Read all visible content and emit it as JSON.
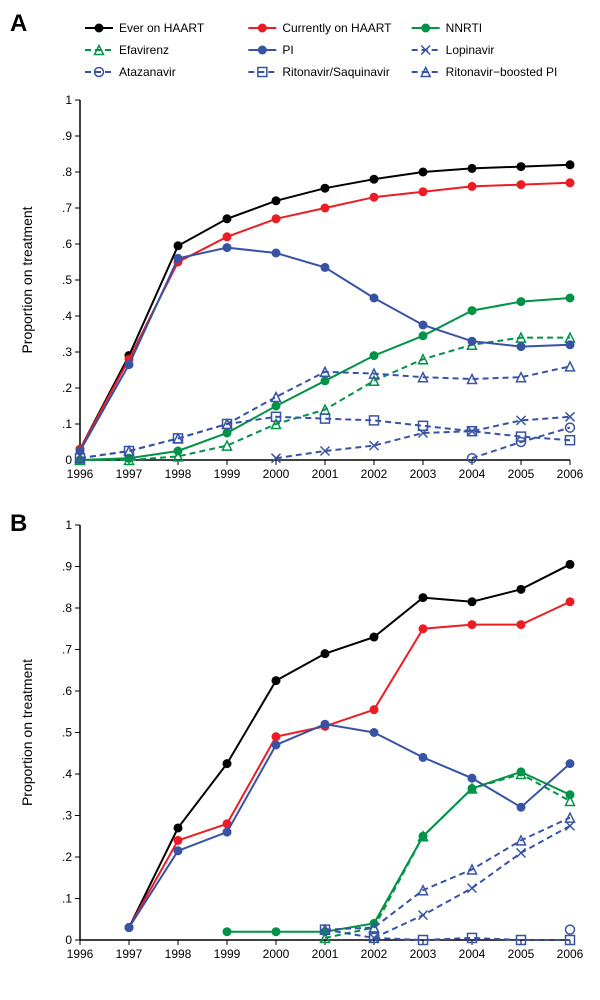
{
  "panelA": {
    "label": "A",
    "ylabel": "Proportion on treatment",
    "ylim": [
      0,
      1
    ],
    "yticks": [
      0,
      0.1,
      0.2,
      0.3,
      0.4,
      0.5,
      0.6,
      0.7,
      0.8,
      0.9,
      1
    ],
    "ytick_labels": [
      "0",
      ".1",
      ".2",
      ".3",
      ".4",
      ".5",
      ".6",
      ".7",
      ".8",
      ".9",
      "1"
    ],
    "xlim": [
      1996,
      2006
    ],
    "xticks": [
      1996,
      1997,
      1998,
      1999,
      2000,
      2001,
      2002,
      2003,
      2004,
      2005,
      2006
    ],
    "background_color": "#ffffff",
    "axis_color": "#000000",
    "label_fontsize": 14,
    "tick_fontsize": 12,
    "legend": {
      "items": [
        {
          "label": "Ever on HAART",
          "color": "#000000",
          "marker": "circle-filled",
          "dash": "solid"
        },
        {
          "label": "Currently on HAART",
          "color": "#ed1c24",
          "marker": "circle-filled",
          "dash": "solid"
        },
        {
          "label": "NNRTI",
          "color": "#009247",
          "marker": "circle-filled",
          "dash": "solid"
        },
        {
          "label": "Efavirenz",
          "color": "#009247",
          "marker": "triangle-open",
          "dash": "dashed"
        },
        {
          "label": "PI",
          "color": "#3953a4",
          "marker": "circle-filled",
          "dash": "solid"
        },
        {
          "label": "Lopinavir",
          "color": "#3953a4",
          "marker": "x",
          "dash": "dashed"
        },
        {
          "label": "Atazanavir",
          "color": "#3953a4",
          "marker": "circle-open",
          "dash": "dashed"
        },
        {
          "label": "Ritonavir/Saquinavir",
          "color": "#3953a4",
          "marker": "square-open",
          "dash": "dashed"
        },
        {
          "label": "Ritonavir−boosted PI",
          "color": "#3953a4",
          "marker": "triangle-open",
          "dash": "dashed"
        }
      ]
    },
    "series": {
      "ever_haart": {
        "color": "#000000",
        "marker": "circle-filled",
        "dash": "solid",
        "x": [
          1996,
          1997,
          1998,
          1999,
          2000,
          2001,
          2002,
          2003,
          2004,
          2005,
          2006
        ],
        "y": [
          0.03,
          0.29,
          0.595,
          0.67,
          0.72,
          0.755,
          0.78,
          0.8,
          0.81,
          0.815,
          0.82
        ]
      },
      "currently_haart": {
        "color": "#ed1c24",
        "marker": "circle-filled",
        "dash": "solid",
        "x": [
          1996,
          1997,
          1998,
          1999,
          2000,
          2001,
          2002,
          2003,
          2004,
          2005,
          2006
        ],
        "y": [
          0.03,
          0.28,
          0.55,
          0.62,
          0.67,
          0.7,
          0.73,
          0.745,
          0.76,
          0.765,
          0.77
        ]
      },
      "nnrti": {
        "color": "#009247",
        "marker": "circle-filled",
        "dash": "solid",
        "x": [
          1996,
          1997,
          1998,
          1999,
          2000,
          2001,
          2002,
          2003,
          2004,
          2005,
          2006
        ],
        "y": [
          0.0,
          0.005,
          0.025,
          0.075,
          0.15,
          0.22,
          0.29,
          0.345,
          0.415,
          0.44,
          0.45
        ]
      },
      "efavirenz": {
        "color": "#009247",
        "marker": "triangle-open",
        "dash": "dashed",
        "x": [
          1996,
          1997,
          1998,
          1999,
          2000,
          2001,
          2002,
          2003,
          2004,
          2005,
          2006
        ],
        "y": [
          0.0,
          0.0,
          0.01,
          0.04,
          0.1,
          0.14,
          0.22,
          0.28,
          0.32,
          0.34,
          0.34
        ]
      },
      "pi": {
        "color": "#3953a4",
        "marker": "circle-filled",
        "dash": "solid",
        "x": [
          1996,
          1997,
          1998,
          1999,
          2000,
          2001,
          2002,
          2003,
          2004,
          2005,
          2006
        ],
        "y": [
          0.025,
          0.265,
          0.56,
          0.59,
          0.575,
          0.535,
          0.45,
          0.375,
          0.33,
          0.315,
          0.32
        ]
      },
      "lopinavir": {
        "color": "#3953a4",
        "marker": "x",
        "dash": "dashed",
        "x": [
          2000,
          2001,
          2002,
          2003,
          2004,
          2005,
          2006
        ],
        "y": [
          0.005,
          0.025,
          0.04,
          0.075,
          0.08,
          0.11,
          0.12
        ]
      },
      "atazanavir": {
        "color": "#3953a4",
        "marker": "circle-open",
        "dash": "dashed",
        "x": [
          2004,
          2005,
          2006
        ],
        "y": [
          0.005,
          0.05,
          0.09
        ]
      },
      "ritonavir_saquinavir": {
        "color": "#3953a4",
        "marker": "square-open",
        "dash": "dashed",
        "x": [
          1996,
          1997,
          1998,
          1999,
          2000,
          2001,
          2002,
          2003,
          2004,
          2005,
          2006
        ],
        "y": [
          0.005,
          0.025,
          0.06,
          0.1,
          0.12,
          0.115,
          0.11,
          0.095,
          0.08,
          0.065,
          0.055
        ]
      },
      "ritonavir_boosted": {
        "color": "#3953a4",
        "marker": "triangle-open",
        "dash": "dashed",
        "x": [
          1996,
          1997,
          1998,
          1999,
          2000,
          2001,
          2002,
          2003,
          2004,
          2005,
          2006
        ],
        "y": [
          0.005,
          0.025,
          0.06,
          0.1,
          0.175,
          0.245,
          0.24,
          0.23,
          0.225,
          0.23,
          0.26
        ]
      }
    }
  },
  "panelB": {
    "label": "B",
    "ylabel": "Proportion on treatment",
    "ylim": [
      0,
      1
    ],
    "yticks": [
      0,
      0.1,
      0.2,
      0.3,
      0.4,
      0.5,
      0.6,
      0.7,
      0.8,
      0.9,
      1
    ],
    "ytick_labels": [
      "0",
      ".1",
      ".2",
      ".3",
      ".4",
      ".5",
      ".6",
      ".7",
      ".8",
      ".9",
      "1"
    ],
    "xlim": [
      1996,
      2006
    ],
    "xticks": [
      1996,
      1997,
      1998,
      1999,
      2000,
      2001,
      2002,
      2003,
      2004,
      2005,
      2006
    ],
    "background_color": "#ffffff",
    "axis_color": "#000000",
    "label_fontsize": 14,
    "tick_fontsize": 12,
    "series": {
      "ever_haart": {
        "color": "#000000",
        "marker": "circle-filled",
        "dash": "solid",
        "x": [
          1997,
          1998,
          1999,
          2000,
          2001,
          2002,
          2003,
          2004,
          2005,
          2006
        ],
        "y": [
          0.03,
          0.27,
          0.425,
          0.625,
          0.69,
          0.73,
          0.825,
          0.815,
          0.845,
          0.905
        ]
      },
      "currently_haart": {
        "color": "#ed1c24",
        "marker": "circle-filled",
        "dash": "solid",
        "x": [
          1997,
          1998,
          1999,
          2000,
          2001,
          2002,
          2003,
          2004,
          2005,
          2006
        ],
        "y": [
          0.03,
          0.24,
          0.28,
          0.49,
          0.515,
          0.555,
          0.75,
          0.76,
          0.76,
          0.815
        ]
      },
      "nnrti": {
        "color": "#009247",
        "marker": "circle-filled",
        "dash": "solid",
        "x": [
          1999,
          2000,
          2001,
          2002,
          2003,
          2004,
          2005,
          2006
        ],
        "y": [
          0.02,
          0.02,
          0.02,
          0.04,
          0.25,
          0.365,
          0.405,
          0.35
        ]
      },
      "efavirenz": {
        "color": "#009247",
        "marker": "triangle-open",
        "dash": "dashed",
        "x": [
          2001,
          2002,
          2003,
          2004,
          2005,
          2006
        ],
        "y": [
          0.005,
          0.03,
          0.25,
          0.365,
          0.4,
          0.335
        ]
      },
      "pi": {
        "color": "#3953a4",
        "marker": "circle-filled",
        "dash": "solid",
        "x": [
          1997,
          1998,
          1999,
          2000,
          2001,
          2002,
          2003,
          2004,
          2005,
          2006
        ],
        "y": [
          0.03,
          0.215,
          0.26,
          0.47,
          0.52,
          0.5,
          0.44,
          0.39,
          0.32,
          0.425
        ]
      },
      "lopinavir": {
        "color": "#3953a4",
        "marker": "x",
        "dash": "dashed",
        "x": [
          2002,
          2003,
          2004,
          2005,
          2006
        ],
        "y": [
          0.005,
          0.06,
          0.125,
          0.21,
          0.275
        ]
      },
      "atazanavir": {
        "color": "#3953a4",
        "marker": "circle-open",
        "dash": "dashed",
        "x": [
          2006
        ],
        "y": [
          0.025
        ]
      },
      "ritonavir_saquinavir": {
        "color": "#3953a4",
        "marker": "square-open",
        "dash": "dashed",
        "x": [
          2001,
          2002,
          2003,
          2004,
          2005,
          2006
        ],
        "y": [
          0.025,
          0.005,
          0.0,
          0.005,
          0.0,
          0.0
        ]
      },
      "ritonavir_boosted": {
        "color": "#3953a4",
        "marker": "triangle-open",
        "dash": "dashed",
        "x": [
          2001,
          2002,
          2003,
          2004,
          2005,
          2006
        ],
        "y": [
          0.025,
          0.03,
          0.12,
          0.17,
          0.24,
          0.295
        ]
      }
    }
  }
}
